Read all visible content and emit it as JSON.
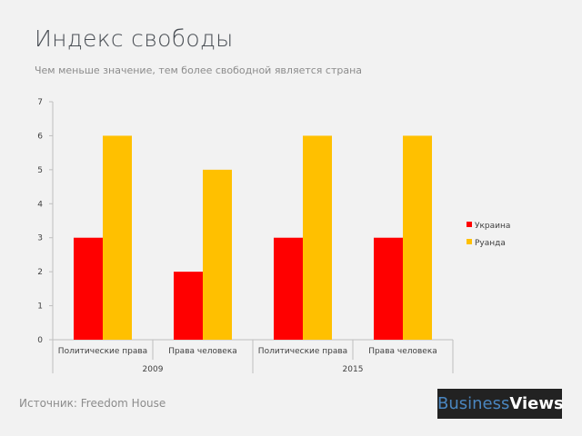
{
  "chart_data": {
    "type": "bar",
    "title": "Индекс свободы",
    "subtitle": "Чем меньше значение, тем более свободной является страна",
    "categories": [
      "Политические права",
      "Права человека",
      "Политические права",
      "Права человека"
    ],
    "groups": [
      {
        "label": "2009",
        "span": 2
      },
      {
        "label": "2015",
        "span": 2
      }
    ],
    "series": [
      {
        "name": "Украина",
        "color": "#ff0000",
        "values": [
          3,
          2,
          3,
          3
        ]
      },
      {
        "name": "Руанда",
        "color": "#ffc000",
        "values": [
          6,
          5,
          6,
          6
        ]
      }
    ],
    "ylim": [
      0,
      7
    ],
    "yticks": [
      0,
      1,
      2,
      3,
      4,
      5,
      6,
      7
    ],
    "legend": "right",
    "grid": false
  },
  "source": "Источник: Freedom House",
  "logo": {
    "part1": "Business",
    "part2": "Views"
  }
}
